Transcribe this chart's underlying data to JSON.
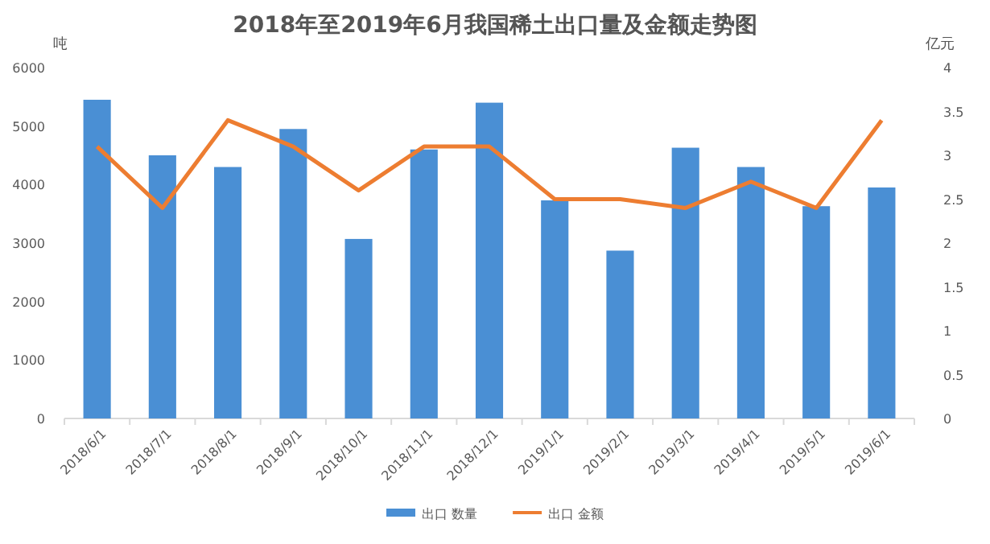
{
  "chart_data": {
    "type": "bar",
    "title": "2018年至2019年6月我国稀土出口量及金额走势图",
    "ylabel": "吨",
    "y2label": "亿元",
    "categories": [
      "2018/6/1",
      "2018/7/1",
      "2018/8/1",
      "2018/9/1",
      "2018/10/1",
      "2018/11/1",
      "2018/12/1",
      "2019/1/1",
      "2019/2/1",
      "2019/3/1",
      "2019/4/1",
      "2019/5/1",
      "2019/6/1"
    ],
    "series": [
      {
        "name": "出口 数量",
        "color": "#4a8fd4",
        "values": [
          5450,
          4500,
          4300,
          4950,
          3070,
          4600,
          5400,
          3730,
          2870,
          4630,
          4300,
          3630,
          3950
        ]
      },
      {
        "name": "出口 金额",
        "type": "line",
        "axis": "y2",
        "color": "#ed7d31",
        "values": [
          3.1,
          2.4,
          3.4,
          3.1,
          2.6,
          3.1,
          3.1,
          2.5,
          2.5,
          2.4,
          2.7,
          2.4,
          3.4
        ]
      }
    ],
    "ylim": [
      0,
      6000
    ],
    "yticks": [
      0,
      1000,
      2000,
      3000,
      4000,
      5000,
      6000
    ],
    "y2lim": [
      0,
      4
    ],
    "y2ticks": [
      0,
      0.5,
      1,
      1.5,
      2,
      2.5,
      3,
      3.5,
      4
    ],
    "grid": false,
    "legend": "bottom",
    "marker": "none"
  }
}
